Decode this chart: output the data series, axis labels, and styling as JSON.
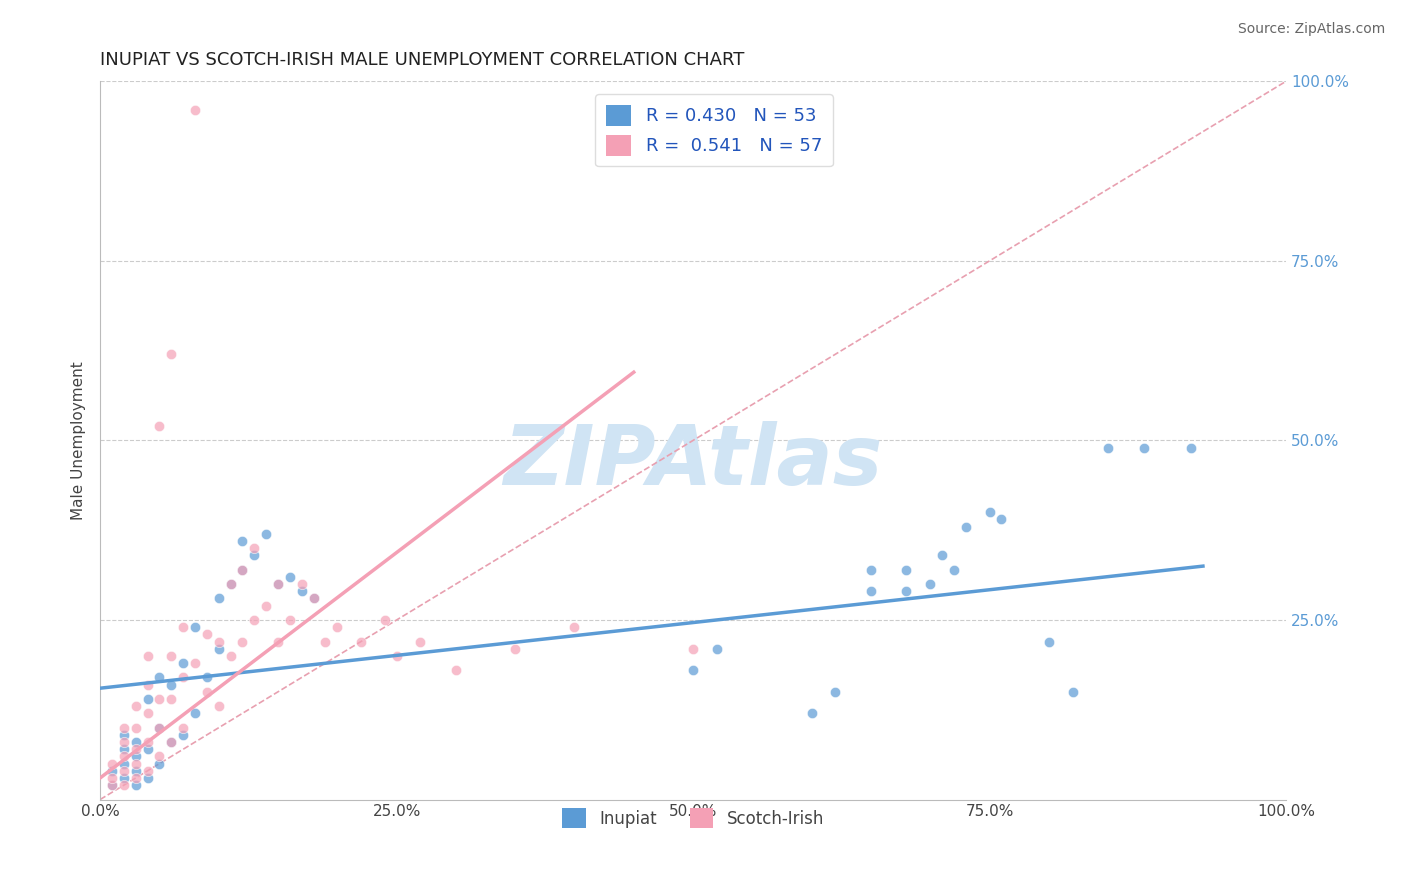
{
  "title": "INUPIAT VS SCOTCH-IRISH MALE UNEMPLOYMENT CORRELATION CHART",
  "source": "Source: ZipAtlas.com",
  "ylabel": "Male Unemployment",
  "xlim": [
    0,
    1
  ],
  "ylim": [
    0,
    1
  ],
  "xticks": [
    0.0,
    0.25,
    0.5,
    0.75,
    1.0
  ],
  "xticklabels": [
    "0.0%",
    "25.0%",
    "50.0%",
    "75.0%",
    "100.0%"
  ],
  "yticks": [
    0.25,
    0.5,
    0.75,
    1.0
  ],
  "yticklabels": [
    "25.0%",
    "50.0%",
    "75.0%",
    "100.0%"
  ],
  "inupiat_color": "#5b9bd5",
  "scotch_irish_color": "#f4a0b5",
  "inupiat_R": 0.43,
  "inupiat_N": 53,
  "scotch_irish_R": 0.541,
  "scotch_irish_N": 57,
  "inupiat_trend_x": [
    0.0,
    0.93
  ],
  "inupiat_trend_y": [
    0.155,
    0.325
  ],
  "scotch_irish_trend_x": [
    0.0,
    0.45
  ],
  "scotch_irish_trend_y": [
    0.03,
    0.595
  ],
  "diag_color": "#e8a0b0",
  "background_color": "#ffffff",
  "watermark": "ZIPAtlas",
  "watermark_color": "#d0e4f4",
  "legend_blue_label": "Inupiat",
  "legend_pink_label": "Scotch-Irish",
  "inupiat_scatter": [
    [
      0.01,
      0.02
    ],
    [
      0.01,
      0.04
    ],
    [
      0.02,
      0.03
    ],
    [
      0.02,
      0.05
    ],
    [
      0.02,
      0.07
    ],
    [
      0.02,
      0.09
    ],
    [
      0.03,
      0.02
    ],
    [
      0.03,
      0.04
    ],
    [
      0.03,
      0.06
    ],
    [
      0.03,
      0.08
    ],
    [
      0.04,
      0.03
    ],
    [
      0.04,
      0.07
    ],
    [
      0.04,
      0.14
    ],
    [
      0.05,
      0.05
    ],
    [
      0.05,
      0.1
    ],
    [
      0.05,
      0.17
    ],
    [
      0.06,
      0.08
    ],
    [
      0.06,
      0.16
    ],
    [
      0.07,
      0.09
    ],
    [
      0.07,
      0.19
    ],
    [
      0.08,
      0.12
    ],
    [
      0.08,
      0.24
    ],
    [
      0.09,
      0.17
    ],
    [
      0.1,
      0.21
    ],
    [
      0.1,
      0.28
    ],
    [
      0.11,
      0.3
    ],
    [
      0.12,
      0.32
    ],
    [
      0.12,
      0.36
    ],
    [
      0.13,
      0.34
    ],
    [
      0.14,
      0.37
    ],
    [
      0.15,
      0.3
    ],
    [
      0.16,
      0.31
    ],
    [
      0.17,
      0.29
    ],
    [
      0.18,
      0.28
    ],
    [
      0.5,
      0.18
    ],
    [
      0.52,
      0.21
    ],
    [
      0.6,
      0.12
    ],
    [
      0.62,
      0.15
    ],
    [
      0.65,
      0.29
    ],
    [
      0.65,
      0.32
    ],
    [
      0.68,
      0.29
    ],
    [
      0.68,
      0.32
    ],
    [
      0.7,
      0.3
    ],
    [
      0.71,
      0.34
    ],
    [
      0.72,
      0.32
    ],
    [
      0.73,
      0.38
    ],
    [
      0.75,
      0.4
    ],
    [
      0.76,
      0.39
    ],
    [
      0.8,
      0.22
    ],
    [
      0.82,
      0.15
    ],
    [
      0.85,
      0.49
    ],
    [
      0.88,
      0.49
    ],
    [
      0.92,
      0.49
    ]
  ],
  "scotch_irish_scatter": [
    [
      0.01,
      0.02
    ],
    [
      0.01,
      0.03
    ],
    [
      0.01,
      0.05
    ],
    [
      0.02,
      0.02
    ],
    [
      0.02,
      0.04
    ],
    [
      0.02,
      0.06
    ],
    [
      0.02,
      0.08
    ],
    [
      0.02,
      0.1
    ],
    [
      0.03,
      0.03
    ],
    [
      0.03,
      0.05
    ],
    [
      0.03,
      0.07
    ],
    [
      0.03,
      0.1
    ],
    [
      0.03,
      0.13
    ],
    [
      0.04,
      0.04
    ],
    [
      0.04,
      0.08
    ],
    [
      0.04,
      0.12
    ],
    [
      0.04,
      0.16
    ],
    [
      0.04,
      0.2
    ],
    [
      0.05,
      0.06
    ],
    [
      0.05,
      0.1
    ],
    [
      0.05,
      0.14
    ],
    [
      0.05,
      0.52
    ],
    [
      0.06,
      0.08
    ],
    [
      0.06,
      0.14
    ],
    [
      0.06,
      0.2
    ],
    [
      0.06,
      0.62
    ],
    [
      0.07,
      0.1
    ],
    [
      0.07,
      0.17
    ],
    [
      0.07,
      0.24
    ],
    [
      0.08,
      0.19
    ],
    [
      0.08,
      0.96
    ],
    [
      0.09,
      0.15
    ],
    [
      0.09,
      0.23
    ],
    [
      0.1,
      0.13
    ],
    [
      0.1,
      0.22
    ],
    [
      0.11,
      0.2
    ],
    [
      0.11,
      0.3
    ],
    [
      0.12,
      0.22
    ],
    [
      0.12,
      0.32
    ],
    [
      0.13,
      0.25
    ],
    [
      0.13,
      0.35
    ],
    [
      0.14,
      0.27
    ],
    [
      0.15,
      0.22
    ],
    [
      0.15,
      0.3
    ],
    [
      0.16,
      0.25
    ],
    [
      0.17,
      0.3
    ],
    [
      0.18,
      0.28
    ],
    [
      0.19,
      0.22
    ],
    [
      0.2,
      0.24
    ],
    [
      0.22,
      0.22
    ],
    [
      0.24,
      0.25
    ],
    [
      0.25,
      0.2
    ],
    [
      0.27,
      0.22
    ],
    [
      0.3,
      0.18
    ],
    [
      0.35,
      0.21
    ],
    [
      0.4,
      0.24
    ],
    [
      0.5,
      0.21
    ]
  ]
}
